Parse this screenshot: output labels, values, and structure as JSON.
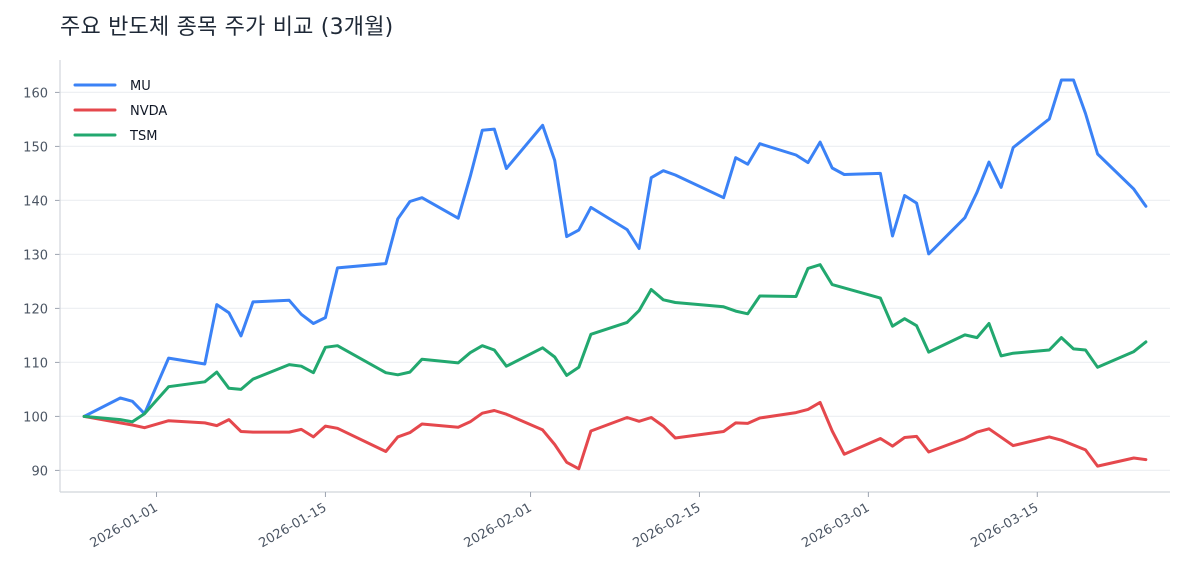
{
  "chart_data": {
    "type": "line",
    "title": "주요 반도체 종목 주가 비교 (3개월)",
    "xlabel": "",
    "ylabel": "",
    "x_axis_type": "date",
    "x_range": [
      "2025-12-24",
      "2026-03-26"
    ],
    "ylim": [
      86,
      166
    ],
    "y_ticks": [
      90,
      100,
      110,
      120,
      130,
      140,
      150,
      160
    ],
    "x_ticks": [
      "2026-01-01",
      "2026-01-15",
      "2026-02-01",
      "2026-02-15",
      "2026-03-01",
      "2026-03-15"
    ],
    "grid": "horizontal",
    "legend_position": "top-left",
    "series": [
      {
        "name": "MU",
        "color": "#3b82f6",
        "points": [
          [
            "2025-12-26",
            100
          ],
          [
            "2025-12-29",
            103.4
          ],
          [
            "2025-12-30",
            102.8
          ],
          [
            "2025-12-31",
            100.5
          ],
          [
            "2026-01-02",
            110.8
          ],
          [
            "2026-01-05",
            109.7
          ],
          [
            "2026-01-06",
            120.7
          ],
          [
            "2026-01-07",
            119.2
          ],
          [
            "2026-01-08",
            114.9
          ],
          [
            "2026-01-09",
            121.2
          ],
          [
            "2026-01-12",
            121.5
          ],
          [
            "2026-01-13",
            118.9
          ],
          [
            "2026-01-14",
            117.2
          ],
          [
            "2026-01-15",
            118.3
          ],
          [
            "2026-01-16",
            127.5
          ],
          [
            "2026-01-20",
            128.3
          ],
          [
            "2026-01-21",
            136.6
          ],
          [
            "2026-01-22",
            139.8
          ],
          [
            "2026-01-23",
            140.5
          ],
          [
            "2026-01-26",
            136.7
          ],
          [
            "2026-01-27",
            144.4
          ],
          [
            "2026-01-28",
            153
          ],
          [
            "2026-01-29",
            153.2
          ],
          [
            "2026-01-30",
            145.9
          ],
          [
            "2026-02-02",
            153.9
          ],
          [
            "2026-02-03",
            147.4
          ],
          [
            "2026-02-04",
            133.3
          ],
          [
            "2026-02-05",
            134.5
          ],
          [
            "2026-02-06",
            138.7
          ],
          [
            "2026-02-09",
            134.6
          ],
          [
            "2026-02-10",
            131.1
          ],
          [
            "2026-02-11",
            144.2
          ],
          [
            "2026-02-12",
            145.5
          ],
          [
            "2026-02-13",
            144.7
          ],
          [
            "2026-02-17",
            140.5
          ],
          [
            "2026-02-18",
            147.9
          ],
          [
            "2026-02-19",
            146.7
          ],
          [
            "2026-02-20",
            150.5
          ],
          [
            "2026-02-23",
            148.4
          ],
          [
            "2026-02-24",
            147
          ],
          [
            "2026-02-25",
            150.8
          ],
          [
            "2026-02-26",
            146
          ],
          [
            "2026-02-27",
            144.8
          ],
          [
            "2026-03-02",
            145
          ],
          [
            "2026-03-03",
            133.4
          ],
          [
            "2026-03-04",
            140.9
          ],
          [
            "2026-03-05",
            139.5
          ],
          [
            "2026-03-06",
            130.1
          ],
          [
            "2026-03-09",
            136.8
          ],
          [
            "2026-03-10",
            141.5
          ],
          [
            "2026-03-11",
            147.1
          ],
          [
            "2026-03-12",
            142.4
          ],
          [
            "2026-03-13",
            149.8
          ],
          [
            "2026-03-16",
            155.1
          ],
          [
            "2026-03-17",
            162.3
          ],
          [
            "2026-03-18",
            162.3
          ],
          [
            "2026-03-19",
            156.1
          ],
          [
            "2026-03-20",
            148.6
          ],
          [
            "2026-03-23",
            142.1
          ],
          [
            "2026-03-24",
            138.9
          ]
        ]
      },
      {
        "name": "NVDA",
        "color": "#e5484d",
        "points": [
          [
            "2025-12-26",
            100
          ],
          [
            "2025-12-29",
            98.8
          ],
          [
            "2025-12-30",
            98.4
          ],
          [
            "2025-12-31",
            97.9
          ],
          [
            "2026-01-02",
            99.2
          ],
          [
            "2026-01-05",
            98.8
          ],
          [
            "2026-01-06",
            98.3
          ],
          [
            "2026-01-07",
            99.4
          ],
          [
            "2026-01-08",
            97.2
          ],
          [
            "2026-01-09",
            97.1
          ],
          [
            "2026-01-12",
            97.1
          ],
          [
            "2026-01-13",
            97.6
          ],
          [
            "2026-01-14",
            96.2
          ],
          [
            "2026-01-15",
            98.2
          ],
          [
            "2026-01-16",
            97.8
          ],
          [
            "2026-01-20",
            93.5
          ],
          [
            "2026-01-21",
            96.2
          ],
          [
            "2026-01-22",
            97
          ],
          [
            "2026-01-23",
            98.6
          ],
          [
            "2026-01-26",
            98
          ],
          [
            "2026-01-27",
            99
          ],
          [
            "2026-01-28",
            100.6
          ],
          [
            "2026-01-29",
            101.1
          ],
          [
            "2026-01-30",
            100.4
          ],
          [
            "2026-02-02",
            97.5
          ],
          [
            "2026-02-03",
            94.8
          ],
          [
            "2026-02-04",
            91.5
          ],
          [
            "2026-02-05",
            90.3
          ],
          [
            "2026-02-06",
            97.3
          ],
          [
            "2026-02-09",
            99.8
          ],
          [
            "2026-02-10",
            99.1
          ],
          [
            "2026-02-11",
            99.8
          ],
          [
            "2026-02-12",
            98.2
          ],
          [
            "2026-02-13",
            96
          ],
          [
            "2026-02-17",
            97.2
          ],
          [
            "2026-02-18",
            98.8
          ],
          [
            "2026-02-19",
            98.7
          ],
          [
            "2026-02-20",
            99.7
          ],
          [
            "2026-02-23",
            100.7
          ],
          [
            "2026-02-24",
            101.3
          ],
          [
            "2026-02-25",
            102.6
          ],
          [
            "2026-02-26",
            97.3
          ],
          [
            "2026-02-27",
            93
          ],
          [
            "2026-03-02",
            95.9
          ],
          [
            "2026-03-03",
            94.5
          ],
          [
            "2026-03-04",
            96.1
          ],
          [
            "2026-03-05",
            96.3
          ],
          [
            "2026-03-06",
            93.4
          ],
          [
            "2026-03-09",
            95.9
          ],
          [
            "2026-03-10",
            97.1
          ],
          [
            "2026-03-11",
            97.7
          ],
          [
            "2026-03-13",
            94.6
          ],
          [
            "2026-03-16",
            96.2
          ],
          [
            "2026-03-17",
            95.6
          ],
          [
            "2026-03-19",
            93.8
          ],
          [
            "2026-03-20",
            90.8
          ],
          [
            "2026-03-23",
            92.3
          ],
          [
            "2026-03-24",
            92
          ]
        ]
      },
      {
        "name": "TSM",
        "color": "#22a86f",
        "points": [
          [
            "2025-12-26",
            100
          ],
          [
            "2025-12-29",
            99.4
          ],
          [
            "2025-12-30",
            99
          ],
          [
            "2025-12-31",
            100.5
          ],
          [
            "2026-01-02",
            105.5
          ],
          [
            "2026-01-05",
            106.4
          ],
          [
            "2026-01-06",
            108.2
          ],
          [
            "2026-01-07",
            105.2
          ],
          [
            "2026-01-08",
            105
          ],
          [
            "2026-01-09",
            106.9
          ],
          [
            "2026-01-12",
            109.6
          ],
          [
            "2026-01-13",
            109.3
          ],
          [
            "2026-01-14",
            108.1
          ],
          [
            "2026-01-15",
            112.8
          ],
          [
            "2026-01-16",
            113.1
          ],
          [
            "2026-01-20",
            108.1
          ],
          [
            "2026-01-21",
            107.7
          ],
          [
            "2026-01-22",
            108.2
          ],
          [
            "2026-01-23",
            110.6
          ],
          [
            "2026-01-26",
            109.9
          ],
          [
            "2026-01-27",
            111.8
          ],
          [
            "2026-01-28",
            113.1
          ],
          [
            "2026-01-29",
            112.3
          ],
          [
            "2026-01-30",
            109.3
          ],
          [
            "2026-02-02",
            112.7
          ],
          [
            "2026-02-03",
            111
          ],
          [
            "2026-02-04",
            107.6
          ],
          [
            "2026-02-05",
            109.1
          ],
          [
            "2026-02-06",
            115.2
          ],
          [
            "2026-02-09",
            117.4
          ],
          [
            "2026-02-10",
            119.6
          ],
          [
            "2026-02-11",
            123.5
          ],
          [
            "2026-02-12",
            121.6
          ],
          [
            "2026-02-13",
            121.1
          ],
          [
            "2026-02-17",
            120.3
          ],
          [
            "2026-02-18",
            119.5
          ],
          [
            "2026-02-19",
            119
          ],
          [
            "2026-02-20",
            122.3
          ],
          [
            "2026-02-23",
            122.2
          ],
          [
            "2026-02-24",
            127.4
          ],
          [
            "2026-02-25",
            128.1
          ],
          [
            "2026-02-26",
            124.4
          ],
          [
            "2026-03-02",
            121.9
          ],
          [
            "2026-03-03",
            116.7
          ],
          [
            "2026-03-04",
            118.1
          ],
          [
            "2026-03-05",
            116.8
          ],
          [
            "2026-03-06",
            111.9
          ],
          [
            "2026-03-09",
            115.1
          ],
          [
            "2026-03-10",
            114.6
          ],
          [
            "2026-03-11",
            117.2
          ],
          [
            "2026-03-12",
            111.2
          ],
          [
            "2026-03-13",
            111.7
          ],
          [
            "2026-03-16",
            112.3
          ],
          [
            "2026-03-17",
            114.6
          ],
          [
            "2026-03-18",
            112.5
          ],
          [
            "2026-03-19",
            112.3
          ],
          [
            "2026-03-20",
            109.1
          ],
          [
            "2026-03-23",
            112
          ],
          [
            "2026-03-24",
            113.8
          ]
        ]
      }
    ]
  }
}
